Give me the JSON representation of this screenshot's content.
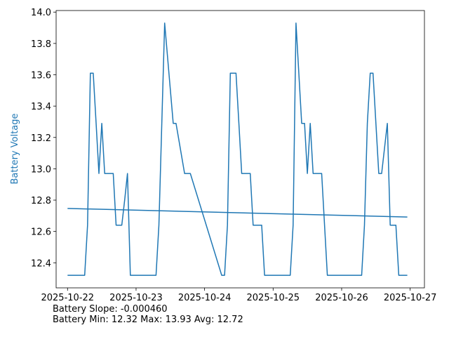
{
  "chart_data": {
    "type": "line",
    "title": "",
    "xlabel": "",
    "ylabel": "Battery Voltage",
    "xlim": [
      "2025-10-21 20:00",
      "2025-10-27 05:00"
    ],
    "ylim": [
      12.24,
      14.01
    ],
    "grid": false,
    "x_ticks": [
      "2025-10-22",
      "2025-10-23",
      "2025-10-24",
      "2025-10-25",
      "2025-10-26",
      "2025-10-27"
    ],
    "y_ticks": [
      "12.4",
      "12.6",
      "12.8",
      "13.0",
      "13.2",
      "13.4",
      "13.6",
      "13.8",
      "14.0"
    ],
    "series": [
      {
        "color": "#1f77b4",
        "x": [
          "2025-10-22 00:00",
          "2025-10-22 06:00",
          "2025-10-22 07:00",
          "2025-10-22 08:00",
          "2025-10-22 09:00",
          "2025-10-22 10:00",
          "2025-10-22 11:00",
          "2025-10-22 12:00",
          "2025-10-22 13:00",
          "2025-10-22 16:00",
          "2025-10-22 17:00",
          "2025-10-22 19:00",
          "2025-10-22 20:00",
          "2025-10-22 21:00",
          "2025-10-22 22:00",
          "2025-10-23 07:00",
          "2025-10-23 08:00",
          "2025-10-23 10:00",
          "2025-10-23 13:00",
          "2025-10-23 14:00",
          "2025-10-23 17:00",
          "2025-10-23 19:00",
          "2025-10-24 06:00",
          "2025-10-24 07:00",
          "2025-10-24 08:00",
          "2025-10-24 09:00",
          "2025-10-24 11:00",
          "2025-10-24 12:00",
          "2025-10-24 13:00",
          "2025-10-24 16:00",
          "2025-10-24 17:00",
          "2025-10-24 20:00",
          "2025-10-24 21:00",
          "2025-10-25 06:00",
          "2025-10-25 07:00",
          "2025-10-25 08:00",
          "2025-10-25 10:00",
          "2025-10-25 11:00",
          "2025-10-25 12:00",
          "2025-10-25 13:00",
          "2025-10-25 14:00",
          "2025-10-25 17:00",
          "2025-10-25 19:00",
          "2025-10-26 07:00",
          "2025-10-26 08:00",
          "2025-10-26 09:00",
          "2025-10-26 10:00",
          "2025-10-26 11:00",
          "2025-10-26 13:00",
          "2025-10-26 14:00",
          "2025-10-26 16:00",
          "2025-10-26 17:00",
          "2025-10-26 19:00",
          "2025-10-26 20:00",
          "2025-10-26 21:00",
          "2025-10-26 23:00"
        ],
        "y": [
          12.32,
          12.32,
          12.64,
          13.61,
          13.61,
          13.29,
          12.97,
          13.29,
          12.97,
          12.97,
          12.64,
          12.64,
          12.8,
          12.97,
          12.32,
          12.32,
          12.64,
          13.93,
          13.29,
          13.29,
          12.97,
          12.97,
          12.32,
          12.32,
          12.64,
          13.61,
          13.61,
          13.29,
          12.97,
          12.97,
          12.64,
          12.64,
          12.32,
          12.32,
          12.64,
          13.93,
          13.29,
          13.29,
          12.97,
          13.29,
          12.97,
          12.97,
          12.32,
          12.32,
          12.64,
          13.29,
          13.61,
          13.61,
          12.97,
          12.97,
          13.29,
          12.64,
          12.64,
          12.32,
          12.32,
          12.32
        ]
      },
      {
        "color": "#1f77b4",
        "x": [
          "2025-10-22 00:00",
          "2025-10-26 23:00"
        ],
        "y": [
          12.747,
          12.692
        ]
      }
    ]
  },
  "stats": {
    "slope_line": "Battery Slope: -0.000460",
    "minmax_line": "Battery Min: 12.32 Max: 13.93 Avg: 12.72"
  }
}
